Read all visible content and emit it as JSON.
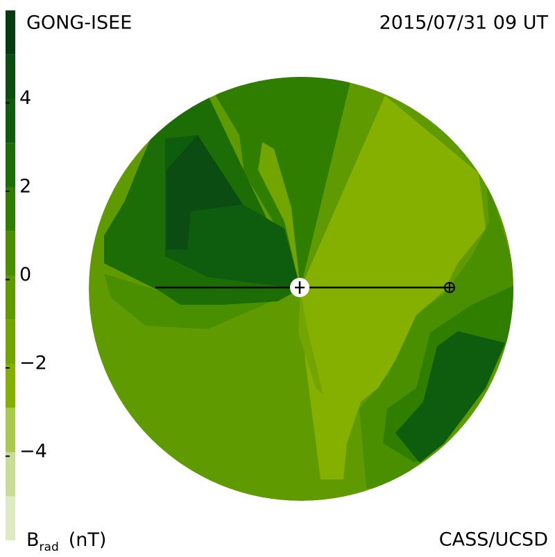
{
  "chart_data": {
    "type": "contour-map",
    "title": "GONG-ISEE",
    "date": "2015/07/31 09 UT",
    "credit": "CASS/UCSD",
    "colorbar": {
      "label": "B",
      "label_sub": "rad",
      "label_unit": "(nT)",
      "lim": [
        -6,
        6
      ],
      "levels": [
        -6,
        -5,
        -4,
        -3,
        -2,
        -1,
        0,
        1,
        2,
        3,
        4,
        5,
        6
      ],
      "colors": [
        "#dfe9c3",
        "#cbdc98",
        "#a9c94f",
        "#86b000",
        "#72a500",
        "#5f9b00",
        "#4a8f00",
        "#2f7e00",
        "#1d6d06",
        "#0e5c0e",
        "#0a4c12",
        "#083a12"
      ],
      "ticks": [
        {
          "value": -4,
          "label": "−4"
        },
        {
          "value": -2,
          "label": "−2"
        },
        0,
        2,
        4
      ]
    }
  }
}
